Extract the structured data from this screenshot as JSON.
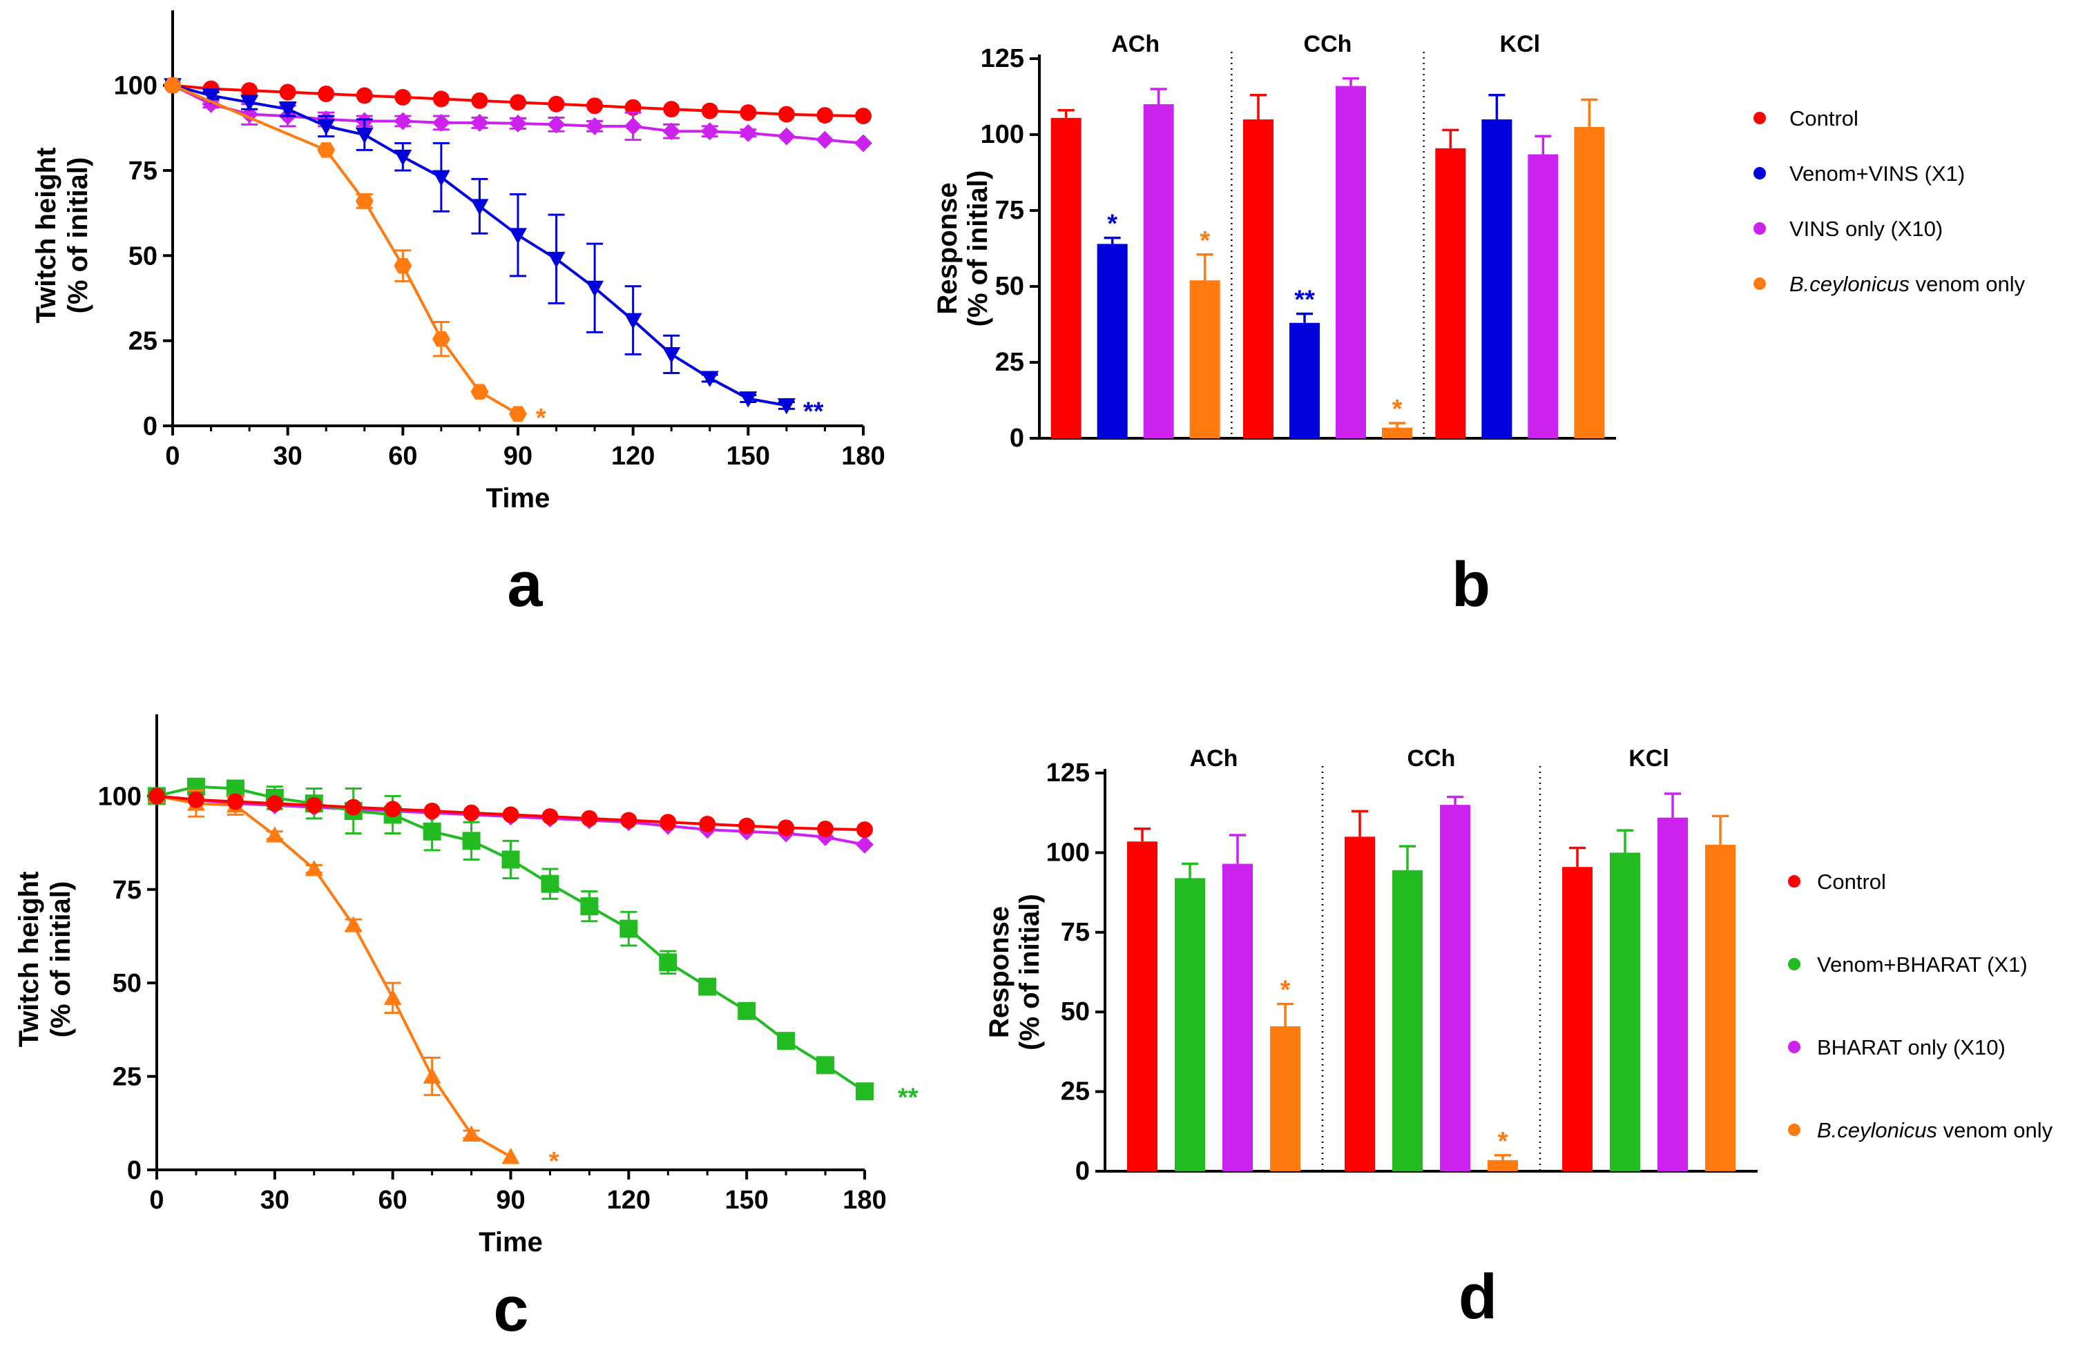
{
  "colors": {
    "control": "#ff0000",
    "venom_vins": "#0000dd",
    "vins_only": "#cc22ee",
    "venom_only": "#ff7a10",
    "venom_bharat": "#22bb22",
    "bharat_only": "#cc22ee"
  },
  "chart_data": [
    {
      "panel": "a",
      "type": "line",
      "title": "",
      "xlabel": "Time",
      "ylabel_line1": "Twitch height",
      "ylabel_line2": "(% of initial)",
      "xlim": [
        0,
        180
      ],
      "ylim": [
        0,
        120
      ],
      "xticks": [
        "0",
        "30",
        "60",
        "90",
        "120",
        "150",
        "180"
      ],
      "yticks": [
        "0",
        "25",
        "50",
        "75",
        "100"
      ],
      "series": [
        {
          "name": "Control",
          "marker": "circle",
          "color_key": "control",
          "x": [
            0,
            10,
            20,
            30,
            40,
            50,
            60,
            70,
            80,
            90,
            100,
            110,
            120,
            130,
            140,
            150,
            160,
            170,
            180
          ],
          "y": [
            100,
            99,
            98.5,
            98,
            97.5,
            97,
            96.5,
            96,
            95.5,
            95,
            94.5,
            94,
            93.5,
            93,
            92.5,
            92,
            91.5,
            91.2,
            91
          ],
          "err": [
            0,
            0,
            0,
            0,
            0,
            0,
            0,
            0,
            0,
            0,
            0,
            0,
            0,
            0,
            0,
            0,
            0,
            0,
            0
          ]
        },
        {
          "name": "VINS only (X10)",
          "marker": "diamond",
          "color_key": "vins_only",
          "x": [
            0,
            10,
            20,
            30,
            40,
            50,
            60,
            70,
            80,
            90,
            100,
            110,
            120,
            130,
            140,
            150,
            160,
            170,
            180
          ],
          "y": [
            100,
            94.5,
            91.5,
            91,
            90,
            89.5,
            89.5,
            89,
            89,
            88.8,
            88.5,
            88,
            88,
            86.5,
            86.5,
            86,
            85,
            84,
            83
          ],
          "err": [
            0,
            1,
            3,
            3,
            2,
            1.5,
            1.5,
            2,
            1.5,
            1.5,
            2,
            1.5,
            4,
            2,
            1.5,
            1,
            0.5,
            0.5,
            0.5
          ]
        },
        {
          "name": "Venom+VINS (X1)",
          "marker": "triangle-down",
          "color_key": "venom_vins",
          "x": [
            0,
            10,
            20,
            30,
            40,
            50,
            60,
            70,
            80,
            90,
            100,
            110,
            120,
            130,
            140,
            150,
            160
          ],
          "y": [
            100,
            97,
            95,
            93,
            88,
            85.5,
            79,
            73,
            64.5,
            56,
            49,
            40.5,
            31,
            21,
            14,
            8,
            6
          ],
          "err": [
            0,
            1,
            2,
            2,
            3,
            4.5,
            4,
            10,
            8,
            12,
            13,
            13,
            10,
            5.5,
            1,
            1,
            1
          ]
        },
        {
          "name": "B.ceylonicus venom only",
          "marker": "hexagon",
          "color_key": "venom_only",
          "x": [
            0,
            40,
            50,
            60,
            70,
            80,
            90
          ],
          "y": [
            100,
            81,
            66,
            47,
            25.5,
            10,
            3.5
          ],
          "err": [
            0,
            0.5,
            2,
            4.5,
            5,
            0.5,
            0.5
          ]
        }
      ],
      "annotations": [
        {
          "text": "*",
          "color_key": "venom_only",
          "x": 96,
          "y": 3
        },
        {
          "text": "**",
          "color_key": "venom_vins",
          "x": 167,
          "y": 5
        }
      ]
    },
    {
      "panel": "b",
      "type": "bar",
      "ylabel_line1": "Response",
      "ylabel_line2": "(% of initial)",
      "ylim": [
        0,
        125
      ],
      "yticks": [
        "0",
        "25",
        "50",
        "75",
        "100",
        "125"
      ],
      "groups": [
        "ACh",
        "CCh",
        "KCl"
      ],
      "series": [
        {
          "name": "Control",
          "color_key": "control",
          "values": [
            105.5,
            105,
            95.5
          ],
          "err": [
            2.5,
            8,
            6
          ]
        },
        {
          "name": "Venom+VINS (X1)",
          "color_key": "venom_vins",
          "values": [
            64,
            38,
            105
          ],
          "err": [
            2,
            3,
            8
          ]
        },
        {
          "name": "VINS only (X10)",
          "color_key": "vins_only",
          "values": [
            110,
            116,
            93.5
          ],
          "err": [
            5,
            2.5,
            6
          ]
        },
        {
          "name": "B.ceylonicus venom only",
          "color_key": "venom_only",
          "values": [
            52,
            3.5,
            102.5
          ],
          "err": [
            8.5,
            1.5,
            9
          ]
        }
      ],
      "annotations": [
        {
          "text": "*",
          "group": 0,
          "series": 1,
          "color_key": "venom_vins"
        },
        {
          "text": "*",
          "group": 0,
          "series": 3,
          "color_key": "venom_only"
        },
        {
          "text": "**",
          "group": 1,
          "series": 1,
          "color_key": "venom_vins"
        },
        {
          "text": "*",
          "group": 1,
          "series": 3,
          "color_key": "venom_only"
        }
      ],
      "legend": [
        {
          "label": "Control",
          "color_key": "control",
          "italic_prefix": ""
        },
        {
          "label": "Venom+VINS (X1)",
          "color_key": "venom_vins",
          "italic_prefix": ""
        },
        {
          "label": "VINS only (X10)",
          "color_key": "vins_only",
          "italic_prefix": ""
        },
        {
          "label": " venom only",
          "color_key": "venom_only",
          "italic_prefix": "B.ceylonicus"
        }
      ]
    },
    {
      "panel": "c",
      "type": "line",
      "title": "",
      "xlabel": "Time",
      "ylabel_line1": "Twitch height",
      "ylabel_line2": "(% of initial)",
      "xlim": [
        0,
        180
      ],
      "ylim": [
        0,
        120
      ],
      "xticks": [
        "0",
        "30",
        "60",
        "90",
        "120",
        "150",
        "180"
      ],
      "yticks": [
        "0",
        "25",
        "50",
        "75",
        "100"
      ],
      "series": [
        {
          "name": "BHARAT only (X10)",
          "marker": "diamond",
          "color_key": "bharat_only",
          "x": [
            0,
            10,
            20,
            30,
            40,
            50,
            60,
            70,
            80,
            90,
            100,
            110,
            120,
            130,
            140,
            150,
            160,
            170,
            180
          ],
          "y": [
            100,
            99,
            98,
            97.5,
            97,
            96.5,
            96,
            95.5,
            95,
            94.5,
            94,
            93.5,
            93,
            92,
            91,
            90.5,
            90,
            89,
            87
          ],
          "err": [
            0,
            0,
            0,
            0,
            0,
            0,
            0,
            0,
            0,
            0,
            0,
            0,
            0,
            0,
            0,
            0,
            0,
            0,
            0
          ]
        },
        {
          "name": "Venom+BHARAT (X1)",
          "marker": "square",
          "color_key": "venom_bharat",
          "x": [
            0,
            10,
            20,
            30,
            40,
            50,
            60,
            70,
            80,
            90,
            100,
            110,
            120,
            130,
            140,
            150,
            160,
            170,
            180
          ],
          "y": [
            100,
            102.5,
            102,
            99.5,
            98,
            96,
            95,
            90.5,
            88,
            83,
            76.5,
            70.5,
            64.5,
            55.5,
            49,
            42.5,
            34.5,
            28,
            21
          ],
          "err": [
            0,
            1,
            1.5,
            3,
            4,
            6,
            5,
            5,
            5,
            5,
            4,
            4,
            4.5,
            3,
            1.5,
            1,
            1,
            0.5,
            0.5
          ]
        },
        {
          "name": "B.ceylonicus venom only",
          "marker": "triangle-up",
          "color_key": "venom_only",
          "x": [
            0,
            10,
            20,
            30,
            40,
            50,
            60,
            70,
            80,
            90
          ],
          "y": [
            100,
            98,
            97.5,
            89.5,
            80.5,
            65.5,
            46,
            25,
            9.5,
            3.5
          ],
          "err": [
            0,
            3.5,
            2.5,
            1,
            1,
            1.5,
            4,
            5,
            1,
            0.5
          ]
        },
        {
          "name": "Control",
          "marker": "circle",
          "color_key": "control",
          "x": [
            0,
            10,
            20,
            30,
            40,
            50,
            60,
            70,
            80,
            90,
            100,
            110,
            120,
            130,
            140,
            150,
            160,
            170,
            180
          ],
          "y": [
            100,
            99,
            98.5,
            98,
            97.5,
            97,
            96.5,
            96,
            95.5,
            95,
            94.5,
            94,
            93.5,
            93,
            92.5,
            92,
            91.5,
            91.2,
            91
          ],
          "err": [
            0,
            0,
            0,
            0,
            0,
            0,
            0,
            0,
            0,
            0,
            0,
            0,
            0,
            0,
            0,
            0,
            0,
            0,
            0
          ]
        }
      ],
      "annotations": [
        {
          "text": "*",
          "color_key": "venom_only",
          "x": 101,
          "y": 3
        },
        {
          "text": "**",
          "color_key": "venom_bharat",
          "x": 191,
          "y": 20
        }
      ]
    },
    {
      "panel": "d",
      "type": "bar",
      "ylabel_line1": "Response",
      "ylabel_line2": "(% of initial)",
      "ylim": [
        0,
        125
      ],
      "yticks": [
        "0",
        "25",
        "50",
        "75",
        "100",
        "125"
      ],
      "groups": [
        "ACh",
        "CCh",
        "KCl"
      ],
      "series": [
        {
          "name": "Control",
          "color_key": "control",
          "values": [
            103.5,
            105,
            95.5
          ],
          "err": [
            4,
            8,
            6
          ]
        },
        {
          "name": "Venom+BHARAT (X1)",
          "color_key": "venom_bharat",
          "values": [
            92,
            94.5,
            100
          ],
          "err": [
            4.5,
            7.5,
            7
          ]
        },
        {
          "name": "BHARAT only (X10)",
          "color_key": "bharat_only",
          "values": [
            96.5,
            115,
            111
          ],
          "err": [
            9,
            2.5,
            7.5
          ]
        },
        {
          "name": "B.ceylonicus venom only",
          "color_key": "venom_only",
          "values": [
            45.5,
            3.5,
            102.5
          ],
          "err": [
            7,
            1.5,
            9
          ]
        }
      ],
      "annotations": [
        {
          "text": "*",
          "group": 0,
          "series": 3,
          "color_key": "venom_only"
        },
        {
          "text": "*",
          "group": 1,
          "series": 3,
          "color_key": "venom_only"
        }
      ],
      "legend": [
        {
          "label": "Control",
          "color_key": "control",
          "italic_prefix": ""
        },
        {
          "label": "Venom+BHARAT (X1)",
          "color_key": "venom_bharat",
          "italic_prefix": ""
        },
        {
          "label": "BHARAT only (X10)",
          "color_key": "bharat_only",
          "italic_prefix": ""
        },
        {
          "label": " venom only",
          "color_key": "venom_only",
          "italic_prefix": "B.ceylonicus"
        }
      ]
    }
  ],
  "panel_labels": [
    "a",
    "b",
    "c",
    "d"
  ]
}
